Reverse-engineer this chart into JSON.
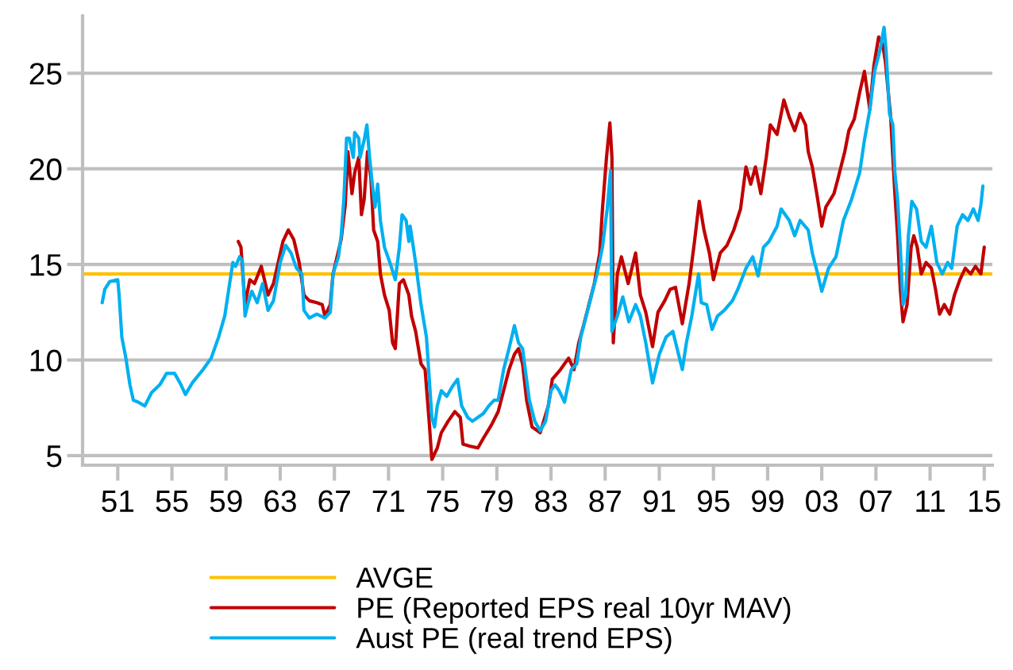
{
  "chart_data": {
    "type": "line",
    "series": [
      {
        "name": "PE (Reported EPS real 10yr MAV)",
        "color": "#c00000",
        "x": [
          1959.9,
          1960.1,
          1960.4,
          1960.75,
          1961.1,
          1961.6,
          1962.1,
          1962.5,
          1962.85,
          1963.2,
          1963.6,
          1964.0,
          1964.4,
          1964.75,
          1965.15,
          1965.7,
          1966.1,
          1966.3,
          1966.7,
          1966.9,
          1967.5,
          1967.8,
          1968.0,
          1968.3,
          1968.5,
          1968.8,
          1969.0,
          1969.2,
          1969.45,
          1969.7,
          1969.9,
          1970.2,
          1970.4,
          1970.7,
          1971.05,
          1971.3,
          1971.5,
          1971.8,
          1972.1,
          1972.5,
          1972.7,
          1973.0,
          1973.4,
          1973.7,
          1974.0,
          1974.2,
          1974.6,
          1974.9,
          1975.4,
          1975.9,
          1976.3,
          1976.5,
          1977.0,
          1977.6,
          1978.0,
          1978.6,
          1979.1,
          1979.5,
          1979.9,
          1980.3,
          1980.6,
          1980.9,
          1981.2,
          1981.6,
          1982.2,
          1982.8,
          1983.1,
          1983.7,
          1984.3,
          1984.7,
          1985.05,
          1985.4,
          1985.8,
          1986.2,
          1986.6,
          1986.8,
          1987.1,
          1987.35,
          1987.5,
          1987.6,
          1987.9,
          1988.2,
          1988.7,
          1989.25,
          1989.6,
          1990.0,
          1990.5,
          1990.9,
          1991.4,
          1991.8,
          1992.2,
          1992.7,
          1993.2,
          1993.6,
          1993.95,
          1994.3,
          1994.7,
          1995.0,
          1995.5,
          1996.0,
          1996.5,
          1997.0,
          1997.4,
          1997.75,
          1998.1,
          1998.5,
          1998.9,
          1999.2,
          1999.7,
          2000.2,
          2000.6,
          2001.0,
          2001.4,
          2001.8,
          2002.0,
          2002.3,
          2002.7,
          2003.0,
          2003.3,
          2003.9,
          2004.2,
          2004.7,
          2005.0,
          2005.4,
          2005.8,
          2006.15,
          2006.55,
          2006.85,
          2007.2,
          2007.5,
          2007.7,
          2008.1,
          2008.25,
          2008.4,
          2008.6,
          2008.8,
          2009.0,
          2009.3,
          2009.6,
          2009.8,
          2010.05,
          2010.35,
          2010.7,
          2011.1,
          2011.4,
          2011.7,
          2012.05,
          2012.45,
          2012.8,
          2013.2,
          2013.6,
          2014.0,
          2014.35,
          2014.75,
          2015.0
        ],
        "values": [
          16.2,
          15.9,
          12.9,
          14.2,
          14.0,
          14.9,
          13.4,
          14.0,
          15.1,
          16.2,
          16.8,
          16.3,
          15.1,
          13.4,
          13.1,
          13.0,
          12.9,
          12.3,
          12.9,
          14.5,
          16.3,
          18.1,
          20.9,
          18.7,
          19.8,
          20.6,
          17.6,
          18.4,
          20.9,
          19.5,
          16.8,
          16.2,
          14.5,
          13.4,
          12.6,
          10.9,
          10.6,
          14.0,
          14.2,
          13.4,
          12.3,
          11.5,
          9.8,
          9.5,
          6.8,
          4.8,
          5.4,
          6.2,
          6.8,
          7.3,
          7.0,
          5.6,
          5.5,
          5.4,
          5.9,
          6.6,
          7.3,
          8.4,
          9.5,
          10.3,
          10.6,
          9.8,
          7.9,
          6.5,
          6.2,
          7.6,
          9.0,
          9.5,
          10.1,
          9.5,
          10.9,
          11.8,
          12.9,
          14.0,
          15.6,
          17.9,
          20.6,
          22.4,
          20.6,
          10.9,
          14.5,
          15.4,
          14.0,
          15.6,
          13.4,
          12.5,
          10.7,
          12.5,
          13.1,
          13.7,
          13.8,
          11.9,
          14.0,
          16.2,
          18.3,
          16.8,
          15.6,
          14.2,
          15.6,
          16.0,
          16.8,
          17.9,
          20.1,
          19.2,
          20.1,
          18.7,
          20.6,
          22.3,
          21.8,
          23.6,
          22.7,
          22.0,
          22.9,
          22.3,
          20.9,
          20.1,
          18.4,
          17.0,
          18.0,
          18.7,
          19.5,
          20.9,
          22.0,
          22.6,
          24.0,
          25.1,
          23.1,
          25.4,
          26.9,
          26.5,
          25.6,
          22.6,
          20.6,
          18.7,
          16.5,
          13.7,
          12.0,
          12.9,
          15.9,
          16.5,
          15.9,
          14.5,
          15.1,
          14.8,
          13.7,
          12.4,
          12.9,
          12.4,
          13.4,
          14.2,
          14.8,
          14.5,
          14.9,
          14.5,
          15.9
        ]
      },
      {
        "name": "Aust PE (real trend EPS)",
        "color": "#00b0f0",
        "x": [
          1949.85,
          1950.04,
          1950.4,
          1951.0,
          1951.1,
          1951.3,
          1951.6,
          1951.9,
          1952.15,
          1952.5,
          1953.0,
          1953.5,
          1954.1,
          1954.6,
          1955.2,
          1955.6,
          1956.0,
          1956.5,
          1957.3,
          1957.9,
          1958.45,
          1958.9,
          1959.2,
          1959.5,
          1959.7,
          1960.0,
          1960.2,
          1960.4,
          1960.6,
          1960.9,
          1961.3,
          1961.7,
          1962.1,
          1962.5,
          1963.0,
          1963.4,
          1963.8,
          1964.2,
          1964.6,
          1964.75,
          1965.15,
          1965.7,
          1966.3,
          1966.7,
          1966.9,
          1967.3,
          1967.5,
          1967.7,
          1967.9,
          1968.1,
          1968.4,
          1968.5,
          1968.8,
          1968.9,
          1969.2,
          1969.4,
          1969.6,
          1969.8,
          1970.0,
          1970.2,
          1970.4,
          1970.7,
          1971.1,
          1971.5,
          1971.8,
          1972.0,
          1972.3,
          1972.5,
          1972.6,
          1973.0,
          1973.4,
          1973.8,
          1974.2,
          1974.4,
          1974.6,
          1974.9,
          1975.3,
          1975.7,
          1976.1,
          1976.4,
          1976.85,
          1977.2,
          1977.6,
          1978.0,
          1978.4,
          1978.8,
          1979.1,
          1979.5,
          1979.9,
          1980.3,
          1980.6,
          1980.9,
          1981.1,
          1981.4,
          1981.8,
          1982.2,
          1982.6,
          1983.0,
          1983.3,
          1983.6,
          1984.0,
          1984.5,
          1984.9,
          1985.2,
          1985.6,
          1986.0,
          1986.4,
          1986.8,
          1987.15,
          1987.4,
          1987.5,
          1987.9,
          1988.3,
          1988.75,
          1989.25,
          1989.6,
          1990.0,
          1990.5,
          1991.0,
          1991.5,
          1992.0,
          1992.7,
          1993.0,
          1993.4,
          1993.9,
          1994.1,
          1994.5,
          1994.9,
          1995.3,
          1995.8,
          1996.4,
          1996.8,
          1997.4,
          1997.9,
          1998.3,
          1998.7,
          1999.1,
          1999.7,
          2000.0,
          2000.6,
          2001.0,
          2001.4,
          2002.0,
          2002.3,
          2002.7,
          2003.0,
          2003.5,
          2004.05,
          2004.6,
          2005.2,
          2005.8,
          2006.15,
          2006.55,
          2006.9,
          2007.3,
          2007.6,
          2007.75,
          2008.0,
          2008.25,
          2008.4,
          2008.6,
          2008.8,
          2009.0,
          2009.2,
          2009.4,
          2009.65,
          2010.0,
          2010.35,
          2010.7,
          2011.1,
          2011.5,
          2011.9,
          2012.3,
          2012.6,
          2013.0,
          2013.4,
          2013.8,
          2014.2,
          2014.55,
          2014.75,
          2014.9
        ],
        "values": [
          13.0,
          13.7,
          14.1,
          14.2,
          13.4,
          11.2,
          10.1,
          8.7,
          7.9,
          7.8,
          7.6,
          8.3,
          8.7,
          9.3,
          9.3,
          8.8,
          8.2,
          8.8,
          9.5,
          10.1,
          11.2,
          12.3,
          13.7,
          15.1,
          14.9,
          15.4,
          15.2,
          12.3,
          12.9,
          13.6,
          13.0,
          14.0,
          12.6,
          13.1,
          15.1,
          16.0,
          15.6,
          14.8,
          14.5,
          12.6,
          12.2,
          12.4,
          12.2,
          12.5,
          14.5,
          15.4,
          16.5,
          18.4,
          21.6,
          21.6,
          20.6,
          21.9,
          21.6,
          20.6,
          21.5,
          22.3,
          20.6,
          19.2,
          18.0,
          19.2,
          17.3,
          15.9,
          15.1,
          14.2,
          15.9,
          17.6,
          17.3,
          16.2,
          17.0,
          15.1,
          12.9,
          11.2,
          7.0,
          6.5,
          7.6,
          8.4,
          8.1,
          8.6,
          9.0,
          7.6,
          7.0,
          6.8,
          7.0,
          7.2,
          7.6,
          7.9,
          7.9,
          9.5,
          10.6,
          11.8,
          10.9,
          10.6,
          9.5,
          7.9,
          6.8,
          6.3,
          6.8,
          8.4,
          8.7,
          8.4,
          7.8,
          9.5,
          9.8,
          11.2,
          12.3,
          13.4,
          14.5,
          15.9,
          17.9,
          19.9,
          11.5,
          12.3,
          13.3,
          12.0,
          12.9,
          12.3,
          10.9,
          8.8,
          10.3,
          11.2,
          11.5,
          9.5,
          10.9,
          12.3,
          14.5,
          13.0,
          12.9,
          11.6,
          12.3,
          12.6,
          13.1,
          13.7,
          14.8,
          15.4,
          14.4,
          15.9,
          16.2,
          17.0,
          17.9,
          17.3,
          16.5,
          17.3,
          16.8,
          15.6,
          14.5,
          13.6,
          14.8,
          15.4,
          17.3,
          18.4,
          19.8,
          21.5,
          23.1,
          25.1,
          26.2,
          27.4,
          26.2,
          22.9,
          22.3,
          19.8,
          18.4,
          15.9,
          12.9,
          13.4,
          16.5,
          18.3,
          17.9,
          16.2,
          15.9,
          17.0,
          15.1,
          14.5,
          15.1,
          14.8,
          17.0,
          17.6,
          17.3,
          17.9,
          17.3,
          18.1,
          19.1
        ]
      }
    ],
    "ref_lines": [
      {
        "axis": "y",
        "value": 14.5,
        "label": "AVGE",
        "color": "#ffc000"
      }
    ],
    "xlim": [
      1948.4,
      2015.6
    ],
    "xticks": [
      {
        "value": 1951,
        "label": "51"
      },
      {
        "value": 1955,
        "label": "55"
      },
      {
        "value": 1959,
        "label": "59"
      },
      {
        "value": 1963,
        "label": "63"
      },
      {
        "value": 1967,
        "label": "67"
      },
      {
        "value": 1971,
        "label": "71"
      },
      {
        "value": 1975,
        "label": "75"
      },
      {
        "value": 1979,
        "label": "79"
      },
      {
        "value": 1983,
        "label": "83"
      },
      {
        "value": 1987,
        "label": "87"
      },
      {
        "value": 1991,
        "label": "91"
      },
      {
        "value": 1995,
        "label": "95"
      },
      {
        "value": 1999,
        "label": "99"
      },
      {
        "value": 2003,
        "label": "03"
      },
      {
        "value": 2007,
        "label": "07"
      },
      {
        "value": 2011,
        "label": "11"
      },
      {
        "value": 2015,
        "label": "15"
      }
    ],
    "ylim": [
      4.5,
      28
    ],
    "yticks": [
      5,
      10,
      15,
      20,
      25
    ],
    "grid": "y",
    "legend": "bottom",
    "marker": "none",
    "line_style": "solid"
  }
}
